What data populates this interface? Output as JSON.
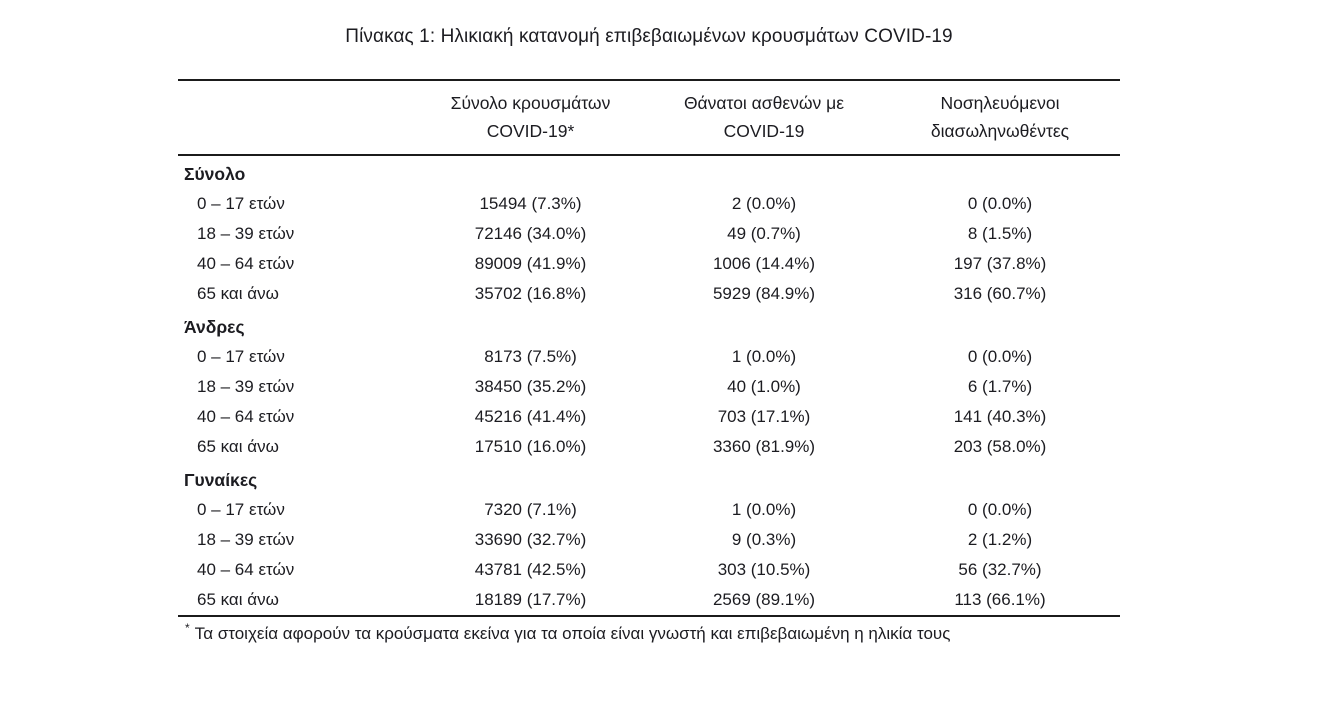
{
  "title": "Πίνακας 1: Ηλικιακή κατανομή επιβεβαιωμένων κρουσμάτων COVID-19",
  "table": {
    "column_headers": [
      {
        "line1": "Σύνολο κρουσμάτων",
        "line2": "COVID-19*"
      },
      {
        "line1": "Θάνατοι ασθενών με",
        "line2": "COVID-19"
      },
      {
        "line1": "Νοσηλευόμενοι",
        "line2": "διασωληνωθέντες"
      }
    ],
    "sections": [
      {
        "label": "Σύνολο",
        "rows": [
          {
            "age": "0 – 17 ετών",
            "cases": "15494 (7.3%)",
            "deaths": "2 (0.0%)",
            "intubated": "0 (0.0%)"
          },
          {
            "age": "18 – 39 ετών",
            "cases": "72146 (34.0%)",
            "deaths": "49 (0.7%)",
            "intubated": "8 (1.5%)"
          },
          {
            "age": "40 – 64 ετών",
            "cases": "89009 (41.9%)",
            "deaths": "1006 (14.4%)",
            "intubated": "197 (37.8%)"
          },
          {
            "age": "65 και άνω",
            "cases": "35702 (16.8%)",
            "deaths": "5929 (84.9%)",
            "intubated": "316 (60.7%)"
          }
        ]
      },
      {
        "label": "Άνδρες",
        "rows": [
          {
            "age": "0 – 17 ετών",
            "cases": "8173 (7.5%)",
            "deaths": "1 (0.0%)",
            "intubated": "0 (0.0%)"
          },
          {
            "age": "18 – 39 ετών",
            "cases": "38450 (35.2%)",
            "deaths": "40 (1.0%)",
            "intubated": "6 (1.7%)"
          },
          {
            "age": "40 – 64 ετών",
            "cases": "45216 (41.4%)",
            "deaths": "703 (17.1%)",
            "intubated": "141 (40.3%)"
          },
          {
            "age": "65 και άνω",
            "cases": "17510 (16.0%)",
            "deaths": "3360 (81.9%)",
            "intubated": "203 (58.0%)"
          }
        ]
      },
      {
        "label": "Γυναίκες",
        "rows": [
          {
            "age": "0 – 17 ετών",
            "cases": "7320 (7.1%)",
            "deaths": "1 (0.0%)",
            "intubated": "0 (0.0%)"
          },
          {
            "age": "18 – 39 ετών",
            "cases": "33690 (32.7%)",
            "deaths": "9 (0.3%)",
            "intubated": "2 (1.2%)"
          },
          {
            "age": "40 – 64 ετών",
            "cases": "43781 (42.5%)",
            "deaths": "303 (10.5%)",
            "intubated": "56 (32.7%)"
          },
          {
            "age": "65 και άνω",
            "cases": "18189 (17.7%)",
            "deaths": "2569 (89.1%)",
            "intubated": "113 (66.1%)"
          }
        ]
      }
    ],
    "footnote_marker": "*",
    "footnote": "Τα στοιχεία αφορούν τα κρούσματα εκείνα για τα οποία είναι γνωστή και επιβεβαιωμένη η ηλικία τους"
  },
  "colors": {
    "text": "#1c1c21",
    "rule": "#1b1b1b",
    "background": "#ffffff"
  }
}
